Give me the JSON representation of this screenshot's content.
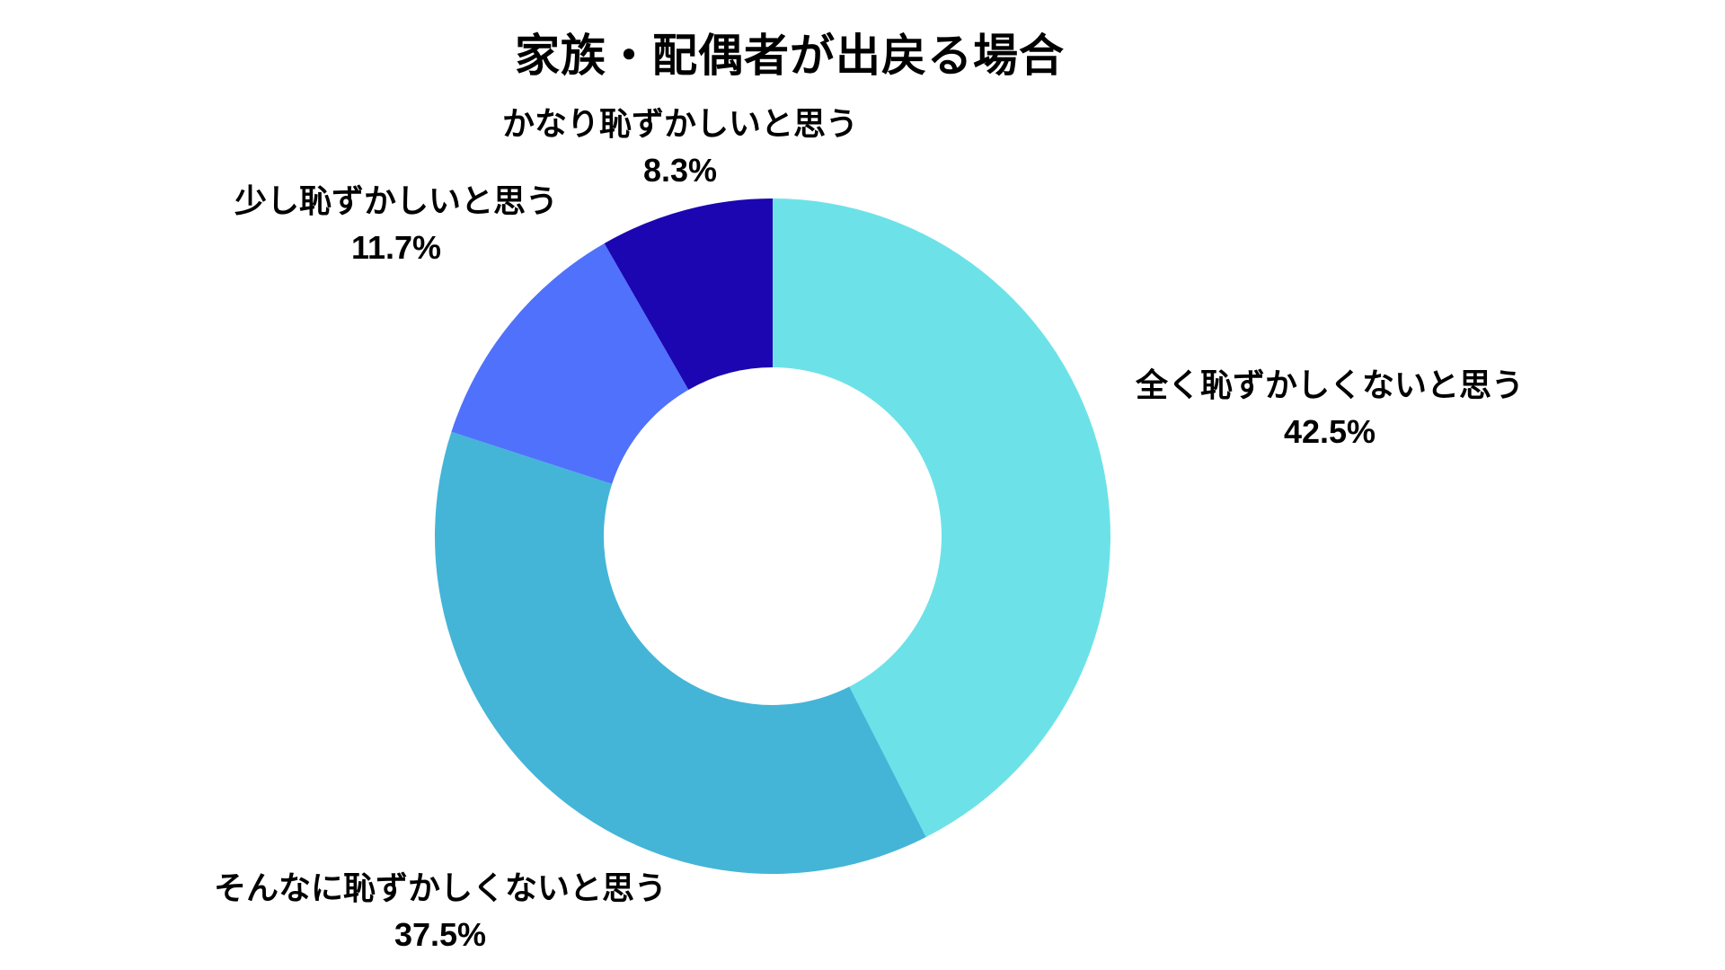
{
  "title": "家族・配偶者が出戻る場合",
  "chart_data": {
    "type": "pie",
    "variant": "donut",
    "title": "家族・配偶者が出戻る場合",
    "start_angle_deg": 0,
    "direction": "clockwise",
    "inner_radius_ratio": 0.5,
    "background": "#FFFFFF",
    "text_color": "#000000",
    "legend_position": "outside-labels",
    "segments": [
      {
        "label": "全く恥ずかしくないと思う",
        "value": 42.5,
        "display": "42.5%",
        "color": "#6CE2E8"
      },
      {
        "label": "そんなに恥ずかしくないと思う",
        "value": 37.5,
        "display": "37.5%",
        "color": "#44B5D7"
      },
      {
        "label": "少し恥ずかしいと思う",
        "value": 11.7,
        "display": "11.7%",
        "color": "#5071FB"
      },
      {
        "label": "かなり恥ずかしいと思う",
        "value": 8.3,
        "display": "8.3%",
        "color": "#1B06B2"
      }
    ]
  }
}
